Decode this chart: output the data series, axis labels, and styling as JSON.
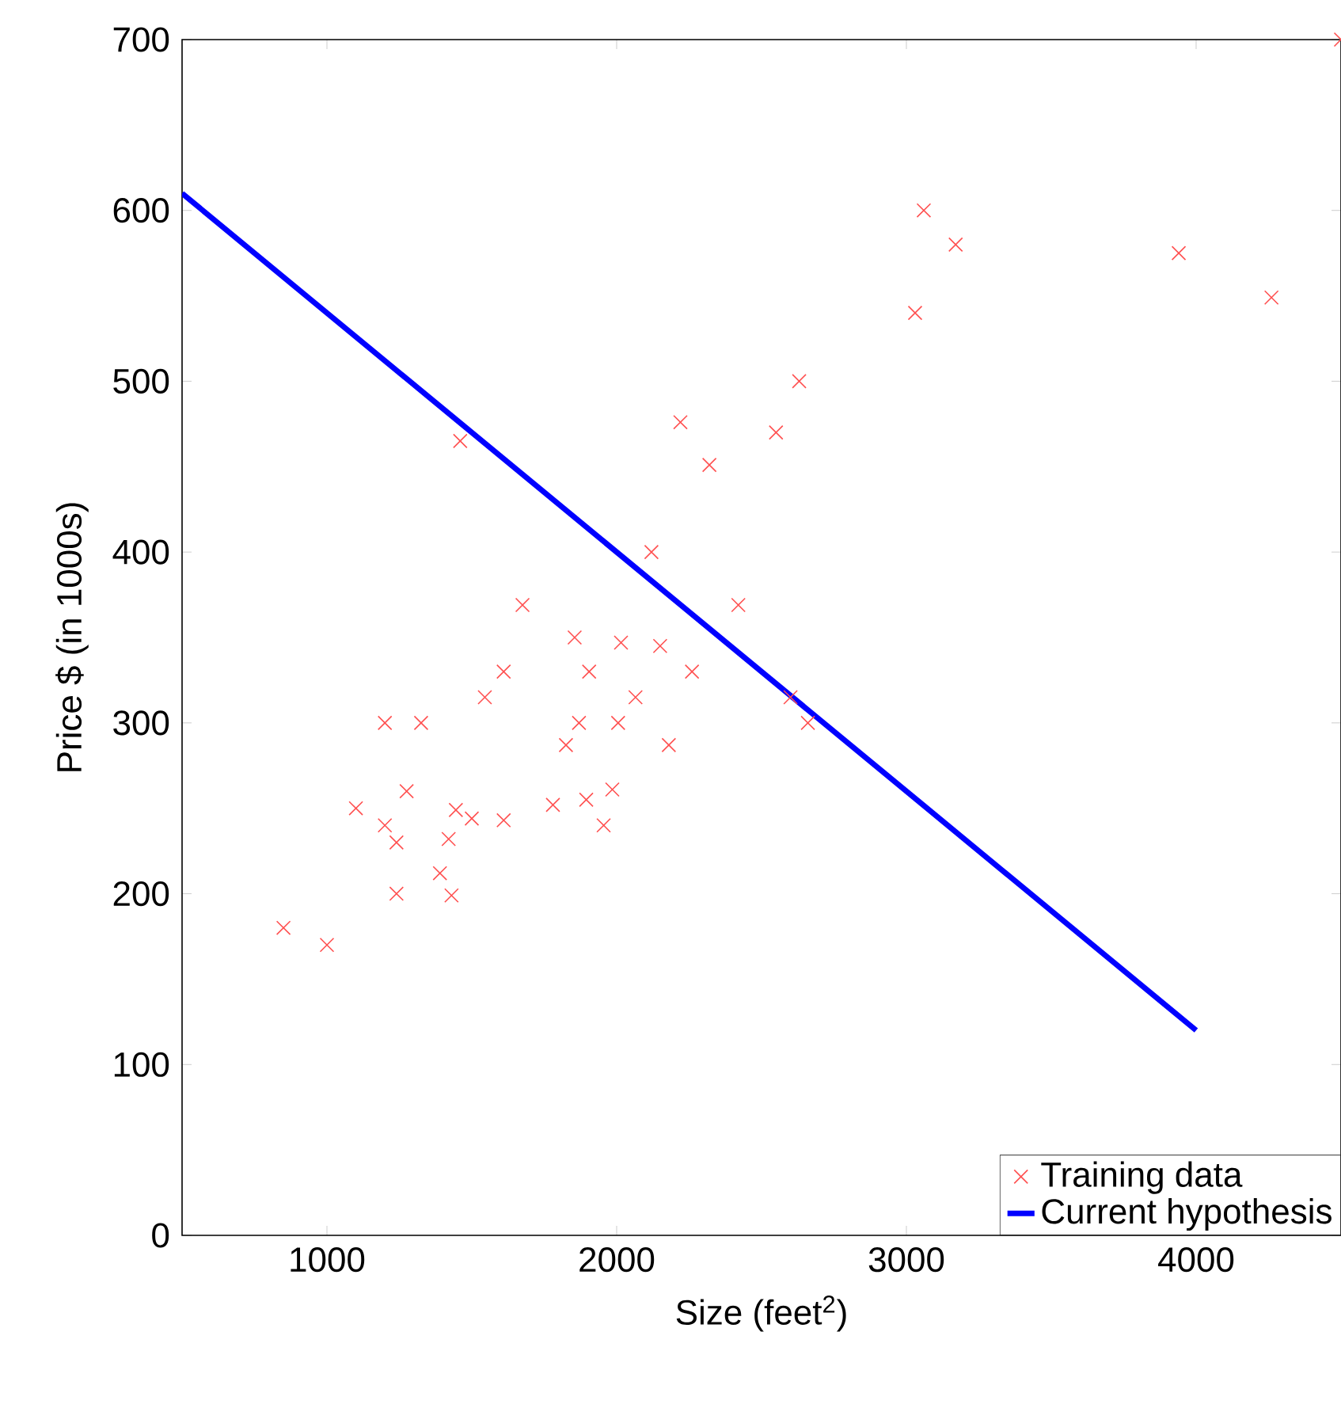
{
  "chart_data": {
    "type": "scatter",
    "xlabel": "Size (feet$^{2}$)",
    "ylabel": "Price $ (in 1000s)",
    "xlim": [
      500,
      4500
    ],
    "ylim": [
      0,
      700
    ],
    "xticks": [
      1000,
      2000,
      3000,
      4000
    ],
    "yticks": [
      0,
      100,
      200,
      300,
      400,
      500,
      600,
      700
    ],
    "grid": false,
    "legend": "bottom right",
    "series": [
      {
        "name": "Training data",
        "marker": "cross",
        "color": "#ff5050",
        "x": [
          850,
          1000,
          1100,
          1200,
          1200,
          1240,
          1240,
          1275,
          1325,
          1390,
          1420,
          1430,
          1445,
          1500,
          1460,
          1545,
          1610,
          1610,
          1675,
          1780,
          1825,
          1855,
          1870,
          1905,
          1895,
          1955,
          1985,
          2005,
          2015,
          2065,
          2120,
          2150,
          2180,
          2220,
          2260,
          2320,
          2420,
          2550,
          2630,
          2600,
          2660,
          3030,
          3060,
          3170,
          3940,
          4260,
          4500
        ],
        "values": [
          180,
          170,
          250,
          300,
          240,
          230,
          200,
          260,
          300,
          212,
          232,
          199,
          249,
          244,
          465,
          315,
          330,
          243,
          369,
          252,
          287,
          350,
          300,
          330,
          255,
          240,
          261,
          300,
          347,
          315,
          400,
          345,
          287,
          476,
          330,
          451,
          369,
          470,
          500,
          315,
          300,
          540,
          600,
          580,
          575,
          549,
          700
        ]
      },
      {
        "name": "Current hypothesis",
        "type": "line",
        "marker": "none",
        "line_style": "solid",
        "color": "#0000ff",
        "x": [
          500,
          4000
        ],
        "values": [
          610,
          120
        ]
      }
    ]
  }
}
